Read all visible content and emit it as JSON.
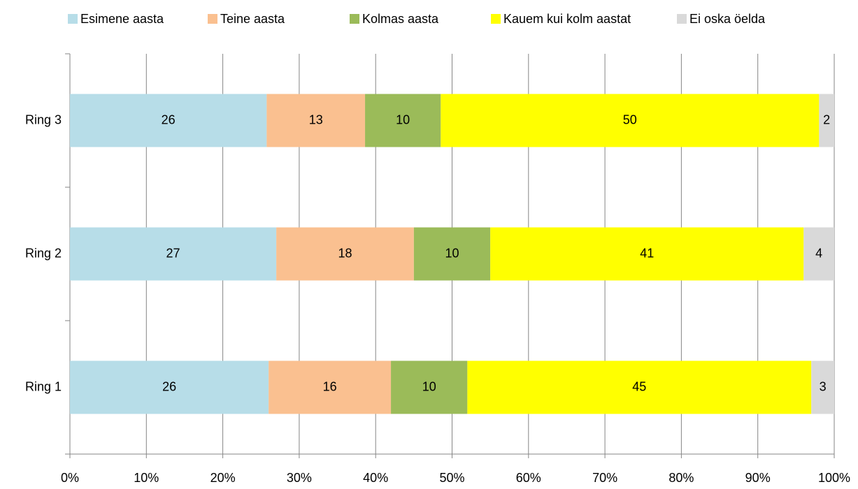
{
  "chart_data": {
    "type": "bar",
    "orientation": "horizontal",
    "stack": "percent",
    "categories": [
      "Ring 1",
      "Ring 2",
      "Ring 3"
    ],
    "series": [
      {
        "name": "Esimene aasta",
        "color": "#b7dde8",
        "values": [
          26,
          27,
          26
        ]
      },
      {
        "name": "Teine aasta",
        "color": "#fac090",
        "values": [
          16,
          18,
          13
        ]
      },
      {
        "name": "Kolmas aasta",
        "color": "#9bbb59",
        "values": [
          10,
          10,
          10
        ]
      },
      {
        "name": "Kauem kui kolm aastat",
        "color": "#ffff00",
        "values": [
          45,
          41,
          50
        ]
      },
      {
        "name": "Ei oska öelda",
        "color": "#d9d9d9",
        "values": [
          3,
          4,
          2
        ]
      }
    ],
    "xlim": [
      0,
      100
    ],
    "xticks": [
      {
        "value": 0,
        "label": "0%"
      },
      {
        "value": 10,
        "label": "10%"
      },
      {
        "value": 20,
        "label": "20%"
      },
      {
        "value": 30,
        "label": "30%"
      },
      {
        "value": 40,
        "label": "40%"
      },
      {
        "value": 50,
        "label": "50%"
      },
      {
        "value": 60,
        "label": "60%"
      },
      {
        "value": 70,
        "label": "70%"
      },
      {
        "value": 80,
        "label": "80%"
      },
      {
        "value": 90,
        "label": "90%"
      },
      {
        "value": 100,
        "label": "100%"
      }
    ],
    "grid": true,
    "legend": "top"
  }
}
